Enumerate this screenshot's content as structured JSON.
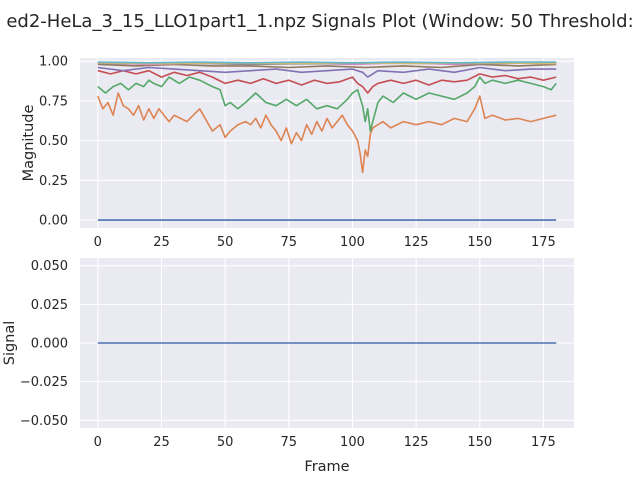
{
  "figure": {
    "title": "ed2-HeLa_3_15_LLO1part1_1.npz Signals Plot (Window: 50 Threshold:"
  },
  "chart_data": [
    {
      "type": "line",
      "name": "magnitude-panel",
      "xlabel": "",
      "ylabel": "Magnitude",
      "xlim": [
        -7,
        187
      ],
      "ylim": [
        -0.05,
        1.02
      ],
      "xticks": [
        0,
        25,
        50,
        75,
        100,
        125,
        150,
        175
      ],
      "yticks": [
        0.0,
        0.25,
        0.5,
        0.75,
        1.0
      ],
      "ytick_labels": [
        "0.00",
        "0.25",
        "0.50",
        "0.75",
        "1.00"
      ],
      "grid": true,
      "series": [
        {
          "color": "#4c72b0",
          "x": [
            0,
            180
          ],
          "y": [
            0.0,
            0.0
          ]
        },
        {
          "color": "#dd8452",
          "x": [
            0,
            2,
            4,
            6,
            8,
            10,
            12,
            14,
            16,
            18,
            20,
            22,
            24,
            26,
            28,
            30,
            35,
            40,
            45,
            48,
            50,
            52,
            55,
            58,
            60,
            62,
            64,
            66,
            68,
            70,
            72,
            74,
            76,
            78,
            80,
            82,
            84,
            86,
            88,
            90,
            92,
            94,
            96,
            98,
            100,
            102,
            103,
            104,
            105,
            106,
            107,
            108,
            110,
            112,
            115,
            120,
            125,
            130,
            135,
            140,
            145,
            148,
            150,
            152,
            155,
            160,
            165,
            170,
            175,
            180
          ],
          "y": [
            0.78,
            0.7,
            0.74,
            0.66,
            0.8,
            0.72,
            0.7,
            0.66,
            0.72,
            0.63,
            0.7,
            0.64,
            0.7,
            0.66,
            0.62,
            0.66,
            0.62,
            0.7,
            0.56,
            0.6,
            0.52,
            0.56,
            0.6,
            0.62,
            0.6,
            0.64,
            0.58,
            0.66,
            0.6,
            0.56,
            0.5,
            0.58,
            0.48,
            0.55,
            0.5,
            0.6,
            0.54,
            0.62,
            0.56,
            0.64,
            0.58,
            0.62,
            0.66,
            0.6,
            0.56,
            0.5,
            0.42,
            0.3,
            0.44,
            0.4,
            0.54,
            0.58,
            0.6,
            0.62,
            0.58,
            0.62,
            0.6,
            0.62,
            0.6,
            0.64,
            0.62,
            0.7,
            0.78,
            0.64,
            0.66,
            0.63,
            0.64,
            0.62,
            0.64,
            0.66
          ]
        },
        {
          "color": "#55a868",
          "x": [
            0,
            3,
            6,
            9,
            12,
            15,
            18,
            20,
            22,
            25,
            28,
            32,
            36,
            40,
            45,
            48,
            50,
            52,
            55,
            58,
            62,
            66,
            70,
            74,
            78,
            82,
            86,
            90,
            94,
            98,
            100,
            102,
            104,
            105,
            106,
            107,
            108,
            110,
            112,
            116,
            120,
            125,
            130,
            135,
            140,
            145,
            148,
            150,
            152,
            155,
            160,
            165,
            170,
            175,
            178,
            180
          ],
          "y": [
            0.84,
            0.8,
            0.84,
            0.86,
            0.82,
            0.86,
            0.84,
            0.88,
            0.86,
            0.84,
            0.9,
            0.86,
            0.9,
            0.88,
            0.84,
            0.82,
            0.72,
            0.74,
            0.7,
            0.74,
            0.8,
            0.74,
            0.72,
            0.76,
            0.72,
            0.76,
            0.7,
            0.72,
            0.7,
            0.76,
            0.8,
            0.82,
            0.72,
            0.62,
            0.7,
            0.56,
            0.62,
            0.74,
            0.78,
            0.74,
            0.8,
            0.76,
            0.8,
            0.78,
            0.76,
            0.8,
            0.84,
            0.9,
            0.86,
            0.88,
            0.86,
            0.88,
            0.86,
            0.84,
            0.82,
            0.86
          ]
        },
        {
          "color": "#c44e52",
          "x": [
            0,
            5,
            10,
            15,
            20,
            25,
            30,
            35,
            40,
            45,
            50,
            55,
            60,
            65,
            70,
            75,
            80,
            85,
            90,
            95,
            100,
            102,
            104,
            106,
            108,
            110,
            115,
            120,
            125,
            130,
            135,
            140,
            145,
            150,
            155,
            160,
            165,
            170,
            175,
            180
          ],
          "y": [
            0.94,
            0.92,
            0.94,
            0.92,
            0.94,
            0.9,
            0.93,
            0.91,
            0.93,
            0.9,
            0.86,
            0.88,
            0.86,
            0.89,
            0.86,
            0.88,
            0.85,
            0.88,
            0.86,
            0.87,
            0.9,
            0.86,
            0.84,
            0.8,
            0.84,
            0.86,
            0.88,
            0.86,
            0.88,
            0.85,
            0.88,
            0.87,
            0.88,
            0.92,
            0.9,
            0.91,
            0.89,
            0.9,
            0.88,
            0.9
          ]
        },
        {
          "color": "#8172b3",
          "x": [
            0,
            10,
            20,
            30,
            40,
            50,
            60,
            70,
            80,
            90,
            100,
            104,
            106,
            110,
            120,
            130,
            140,
            150,
            160,
            170,
            180
          ],
          "y": [
            0.96,
            0.94,
            0.96,
            0.95,
            0.94,
            0.93,
            0.94,
            0.95,
            0.93,
            0.94,
            0.95,
            0.93,
            0.9,
            0.94,
            0.93,
            0.95,
            0.93,
            0.96,
            0.94,
            0.95,
            0.95
          ]
        },
        {
          "color": "#937860",
          "x": [
            0,
            15,
            30,
            45,
            60,
            75,
            90,
            105,
            120,
            135,
            150,
            165,
            180
          ],
          "y": [
            0.98,
            0.97,
            0.98,
            0.97,
            0.97,
            0.96,
            0.97,
            0.96,
            0.97,
            0.96,
            0.98,
            0.97,
            0.98
          ]
        },
        {
          "color": "#da8bc3",
          "x": [
            0,
            20,
            40,
            60,
            80,
            100,
            120,
            140,
            160,
            180
          ],
          "y": [
            0.99,
            0.98,
            0.99,
            0.98,
            0.99,
            0.98,
            0.99,
            0.98,
            0.99,
            0.99
          ]
        },
        {
          "color": "#8c8c8c",
          "x": [
            0,
            30,
            60,
            90,
            120,
            150,
            180
          ],
          "y": [
            0.985,
            0.99,
            0.98,
            0.985,
            0.99,
            0.985,
            0.99
          ]
        },
        {
          "color": "#ccb974",
          "x": [
            0,
            25,
            50,
            75,
            100,
            125,
            150,
            180
          ],
          "y": [
            0.99,
            0.985,
            0.99,
            0.985,
            0.99,
            0.985,
            0.99,
            0.985
          ]
        },
        {
          "color": "#64b5cd",
          "x": [
            0,
            20,
            40,
            60,
            80,
            100,
            120,
            140,
            160,
            180
          ],
          "y": [
            0.995,
            0.99,
            0.995,
            0.99,
            0.995,
            0.99,
            0.995,
            0.99,
            0.995,
            0.995
          ]
        }
      ]
    },
    {
      "type": "line",
      "name": "signal-panel",
      "xlabel": "Frame",
      "ylabel": "Signal",
      "xlim": [
        -7,
        187
      ],
      "ylim": [
        -0.055,
        0.055
      ],
      "xticks": [
        0,
        25,
        50,
        75,
        100,
        125,
        150,
        175
      ],
      "yticks": [
        -0.05,
        -0.025,
        0.0,
        0.025,
        0.05
      ],
      "ytick_labels": [
        "−0.050",
        "−0.025",
        "0.000",
        "0.025",
        "0.050"
      ],
      "grid": true,
      "series": [
        {
          "color": "#4c72b0",
          "x": [
            0,
            180
          ],
          "y": [
            0.0,
            0.0
          ]
        }
      ]
    }
  ]
}
